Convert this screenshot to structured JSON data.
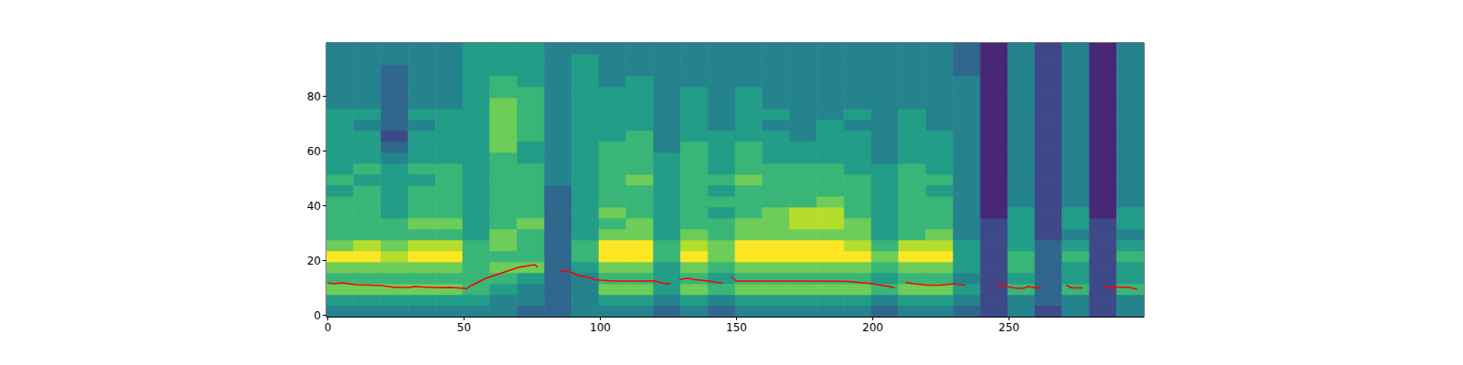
{
  "chart_data": {
    "type": "heatmap",
    "xlim": [
      -0.5,
      299.5
    ],
    "ylim": [
      -0.5,
      99.5
    ],
    "xticks": [
      0,
      50,
      100,
      150,
      200,
      250
    ],
    "yticks": [
      0,
      20,
      40,
      60,
      80
    ],
    "cell_x_edges": [
      -0.5,
      9.5,
      19.5,
      29.5,
      39.5,
      49.5,
      59.5,
      69.5,
      79.5,
      89.5,
      99.5,
      109.5,
      119.5,
      129.5,
      139.5,
      149.5,
      159.5,
      169.5,
      179.5,
      189.5,
      199.5,
      209.5,
      219.5,
      229.5,
      239.5,
      249.5,
      259.5,
      269.5,
      279.5,
      289.5,
      299.5
    ],
    "cell_y_edges": [
      -0.5,
      3.5,
      7.5,
      11.5,
      15.5,
      19.5,
      23.5,
      27.5,
      31.5,
      35.5,
      39.5,
      43.5,
      47.5,
      51.5,
      55.5,
      59.5,
      63.5,
      67.5,
      71.5,
      75.5,
      79.5,
      83.5,
      87.5,
      91.5,
      95.5,
      99.5
    ],
    "cell_range": [
      0,
      9
    ],
    "cells": [
      [
        4,
        4,
        4,
        4,
        4,
        4,
        4,
        3,
        3,
        4,
        4,
        4,
        3,
        4,
        3,
        4,
        4,
        4,
        4,
        4,
        3,
        4,
        4,
        3,
        2,
        4,
        2,
        4,
        2,
        4
      ],
      [
        5,
        5,
        5,
        5,
        5,
        5,
        4,
        4,
        3,
        4,
        5,
        5,
        4,
        5,
        4,
        5,
        5,
        5,
        5,
        5,
        4,
        5,
        5,
        4,
        2,
        4,
        3,
        4,
        2,
        4
      ],
      [
        7,
        7,
        7,
        7,
        7,
        6,
        5,
        4,
        3,
        4,
        7,
        7,
        5,
        7,
        6,
        7,
        7,
        7,
        7,
        7,
        6,
        7,
        7,
        5,
        2,
        6,
        3,
        6,
        2,
        6
      ],
      [
        6,
        6,
        6,
        6,
        6,
        6,
        6,
        5,
        3,
        4,
        6,
        6,
        5,
        6,
        5,
        6,
        6,
        6,
        6,
        6,
        5,
        6,
        6,
        4,
        2,
        5,
        3,
        5,
        2,
        5
      ],
      [
        7,
        7,
        7,
        7,
        7,
        6,
        7,
        7,
        3,
        5,
        7,
        7,
        5,
        7,
        6,
        7,
        7,
        7,
        7,
        7,
        6,
        7,
        7,
        5,
        2,
        6,
        3,
        5,
        2,
        5
      ],
      [
        9,
        9,
        8,
        9,
        9,
        6,
        6,
        6,
        3,
        6,
        9,
        9,
        6,
        9,
        7,
        9,
        9,
        9,
        9,
        9,
        7,
        9,
        9,
        5,
        2,
        6,
        3,
        6,
        2,
        6
      ],
      [
        7,
        8,
        7,
        8,
        8,
        6,
        7,
        6,
        3,
        6,
        9,
        9,
        6,
        8,
        7,
        9,
        9,
        9,
        9,
        8,
        6,
        8,
        8,
        5,
        2,
        5,
        3,
        5,
        2,
        5
      ],
      [
        6,
        6,
        6,
        6,
        6,
        5,
        7,
        6,
        3,
        5,
        7,
        7,
        5,
        7,
        6,
        7,
        7,
        7,
        7,
        7,
        5,
        6,
        7,
        4,
        2,
        5,
        2,
        4,
        2,
        4
      ],
      [
        6,
        6,
        6,
        7,
        7,
        5,
        6,
        7,
        3,
        5,
        6,
        7,
        5,
        6,
        6,
        7,
        7,
        8,
        8,
        7,
        5,
        6,
        6,
        4,
        2,
        5,
        2,
        5,
        2,
        5
      ],
      [
        6,
        6,
        5,
        6,
        6,
        5,
        6,
        6,
        3,
        5,
        7,
        6,
        5,
        6,
        5,
        6,
        7,
        8,
        8,
        6,
        5,
        6,
        6,
        4,
        1,
        5,
        2,
        5,
        1,
        5
      ],
      [
        6,
        6,
        5,
        6,
        6,
        5,
        6,
        6,
        3,
        5,
        6,
        6,
        5,
        6,
        6,
        6,
        6,
        6,
        7,
        6,
        5,
        6,
        6,
        4,
        1,
        4,
        2,
        4,
        1,
        4
      ],
      [
        5,
        6,
        5,
        6,
        6,
        5,
        6,
        6,
        3,
        5,
        6,
        6,
        5,
        6,
        5,
        6,
        6,
        6,
        6,
        6,
        5,
        6,
        5,
        4,
        1,
        4,
        2,
        4,
        1,
        4
      ],
      [
        6,
        5,
        5,
        5,
        6,
        5,
        6,
        6,
        4,
        5,
        6,
        7,
        5,
        6,
        6,
        7,
        6,
        6,
        6,
        6,
        5,
        6,
        6,
        4,
        1,
        4,
        2,
        4,
        1,
        4
      ],
      [
        5,
        6,
        5,
        6,
        6,
        5,
        6,
        6,
        4,
        5,
        6,
        6,
        5,
        6,
        5,
        6,
        6,
        6,
        6,
        5,
        5,
        6,
        5,
        4,
        1,
        4,
        2,
        4,
        1,
        4
      ],
      [
        5,
        5,
        4,
        5,
        5,
        5,
        6,
        5,
        4,
        5,
        6,
        6,
        5,
        6,
        5,
        6,
        5,
        5,
        5,
        5,
        4,
        5,
        5,
        4,
        1,
        4,
        2,
        4,
        1,
        4
      ],
      [
        5,
        5,
        3,
        5,
        5,
        5,
        7,
        5,
        4,
        5,
        6,
        6,
        4,
        6,
        5,
        6,
        5,
        5,
        5,
        5,
        4,
        5,
        5,
        4,
        1,
        4,
        2,
        4,
        1,
        4
      ],
      [
        5,
        5,
        2,
        5,
        5,
        5,
        7,
        6,
        4,
        5,
        5,
        6,
        4,
        5,
        5,
        5,
        5,
        4,
        5,
        5,
        4,
        5,
        5,
        4,
        1,
        4,
        2,
        4,
        1,
        4
      ],
      [
        5,
        4,
        3,
        4,
        5,
        5,
        7,
        6,
        4,
        5,
        5,
        5,
        4,
        5,
        4,
        5,
        4,
        4,
        5,
        4,
        4,
        5,
        4,
        4,
        1,
        4,
        2,
        4,
        1,
        4
      ],
      [
        5,
        5,
        3,
        5,
        5,
        5,
        7,
        6,
        4,
        5,
        5,
        5,
        4,
        5,
        4,
        5,
        5,
        4,
        4,
        5,
        4,
        5,
        4,
        4,
        1,
        4,
        2,
        4,
        1,
        4
      ],
      [
        4,
        4,
        3,
        4,
        4,
        5,
        7,
        6,
        4,
        5,
        5,
        5,
        4,
        5,
        4,
        5,
        4,
        4,
        4,
        4,
        4,
        4,
        4,
        4,
        1,
        4,
        2,
        4,
        1,
        4
      ],
      [
        4,
        4,
        3,
        4,
        4,
        5,
        6,
        6,
        4,
        5,
        5,
        5,
        4,
        5,
        4,
        5,
        4,
        4,
        4,
        4,
        4,
        4,
        4,
        4,
        1,
        4,
        2,
        4,
        1,
        4
      ],
      [
        4,
        4,
        3,
        4,
        4,
        5,
        6,
        5,
        4,
        5,
        4,
        5,
        4,
        4,
        4,
        4,
        4,
        4,
        4,
        4,
        4,
        4,
        4,
        4,
        1,
        4,
        2,
        4,
        1,
        4
      ],
      [
        4,
        4,
        3,
        4,
        4,
        5,
        5,
        5,
        4,
        5,
        4,
        4,
        4,
        4,
        4,
        4,
        4,
        4,
        4,
        4,
        4,
        4,
        4,
        3,
        1,
        4,
        2,
        4,
        1,
        4
      ],
      [
        4,
        4,
        4,
        4,
        4,
        5,
        5,
        5,
        4,
        5,
        4,
        4,
        4,
        4,
        4,
        4,
        4,
        4,
        4,
        4,
        4,
        4,
        4,
        3,
        1,
        4,
        2,
        4,
        1,
        4
      ],
      [
        4,
        4,
        4,
        4,
        4,
        5,
        5,
        5,
        4,
        4,
        4,
        4,
        4,
        4,
        4,
        4,
        4,
        4,
        4,
        4,
        4,
        4,
        4,
        3,
        1,
        4,
        2,
        4,
        1,
        4
      ]
    ],
    "series": [
      {
        "type": "line",
        "color": "#ff0000",
        "x": [
          0,
          2,
          5,
          10,
          15,
          20,
          22,
          25,
          30,
          32,
          35,
          40,
          45,
          48,
          50,
          51,
          52,
          55,
          58,
          61,
          64,
          67,
          70,
          73,
          76,
          77,
          80,
          85,
          88,
          90,
          92,
          95,
          98,
          100,
          105,
          110,
          115,
          120,
          122,
          124,
          126,
          127,
          129,
          132,
          135,
          140,
          143,
          145,
          146,
          148,
          150,
          155,
          160,
          170,
          180,
          190,
          195,
          200,
          203,
          206,
          208,
          210,
          212,
          215,
          220,
          225,
          230,
          234,
          240,
          246,
          247,
          249,
          252,
          255,
          257,
          260,
          262,
          266,
          271,
          273,
          277,
          280,
          285,
          287,
          290,
          294,
          297
        ],
        "values": [
          11.8,
          11.5,
          11.8,
          11.2,
          11,
          10.8,
          10.5,
          10.2,
          10.2,
          10.5,
          10.3,
          10.1,
          10.2,
          10,
          9.8,
          9.7,
          10.5,
          12,
          13.5,
          14.5,
          15.5,
          16.5,
          17.5,
          18,
          18.5,
          17.5,
          null,
          16,
          16,
          15.5,
          14.5,
          14,
          13,
          12.8,
          12.5,
          12.5,
          12.5,
          12.6,
          12,
          11.5,
          11.5,
          null,
          13,
          13.5,
          13,
          12.5,
          12,
          11.8,
          null,
          14,
          12.5,
          12.5,
          12.5,
          12.5,
          12.5,
          12.4,
          12,
          11.5,
          11,
          10.5,
          10,
          null,
          12,
          11.5,
          11,
          11,
          11.5,
          11,
          null,
          10.5,
          11.8,
          10.5,
          10,
          9.8,
          10.5,
          10,
          10,
          null,
          11,
          10,
          10,
          null,
          10.5,
          10,
          10.3,
          10.2,
          9.5
        ]
      }
    ]
  }
}
